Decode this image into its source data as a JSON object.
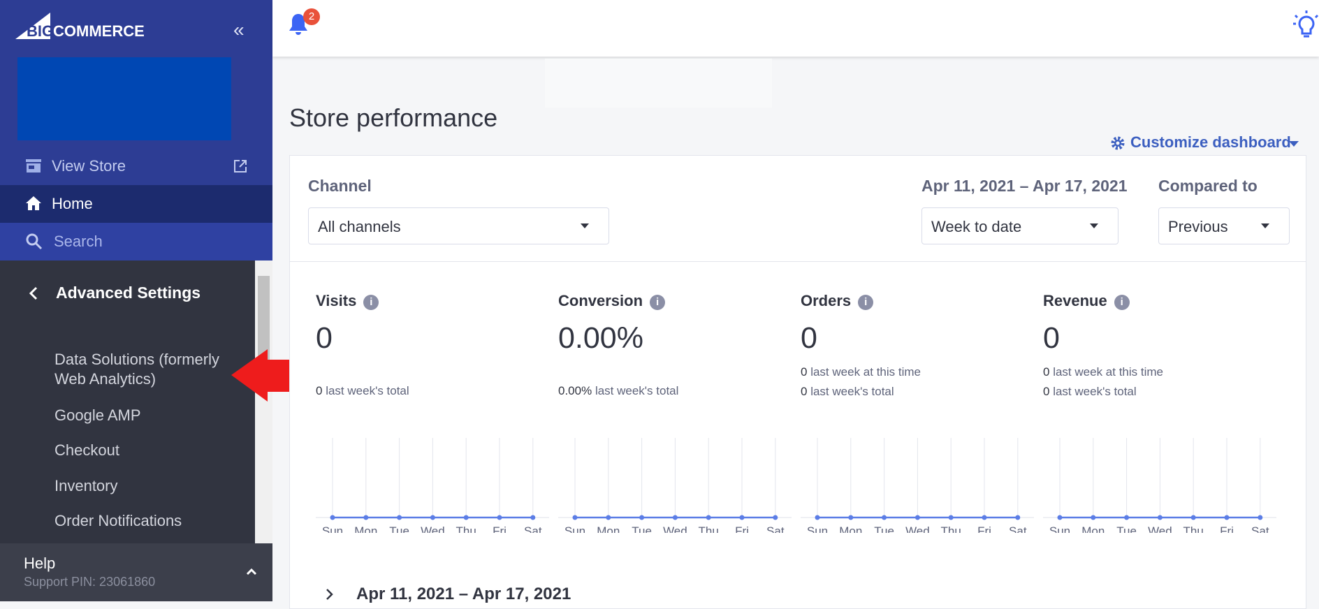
{
  "sidebar": {
    "logo_big": "BIG",
    "logo_rest": "COMMERCE",
    "view_store": "View Store",
    "home": "Home",
    "search": "Search",
    "section": "Advanced Settings",
    "menu": [
      "Data Solutions (formerly\nWeb Analytics)",
      "Google AMP",
      "Checkout",
      "Inventory",
      "Order Notifications"
    ],
    "help": "Help",
    "support_pin": "Support PIN: 23061860"
  },
  "header": {
    "notification_count": "2"
  },
  "main": {
    "title": "Store performance",
    "customize": "Customize dashboard",
    "filters": {
      "channel_label": "Channel",
      "channel": "All channels",
      "date_range": "Apr 11, 2021 – Apr 17, 2021",
      "period": "Week to date",
      "compared_label": "Compared to",
      "compared": "Previous"
    },
    "days": [
      "Sun",
      "Mon",
      "Tue",
      "Wed",
      "Thu",
      "Fri",
      "Sat"
    ],
    "metrics": [
      {
        "name": "Visits",
        "value": "0",
        "lines": [
          {
            "value": "0",
            "text": "last week's total"
          }
        ],
        "chart": [
          0,
          0,
          0,
          0,
          0,
          0,
          0
        ]
      },
      {
        "name": "Conversion",
        "value": "0.00%",
        "lines": [
          {
            "value": "0.00%",
            "text": "last week's total"
          }
        ],
        "chart": [
          0,
          0,
          0,
          0,
          0,
          0,
          0
        ]
      },
      {
        "name": "Orders",
        "value": "0",
        "lines": [
          {
            "value": "0",
            "text": "last week at this time"
          },
          {
            "value": "0",
            "text": "last week's total"
          }
        ],
        "chart": [
          0,
          0,
          0,
          0,
          0,
          0,
          0
        ]
      },
      {
        "name": "Revenue",
        "value": "0",
        "lines": [
          {
            "value": "0",
            "text": "last week at this time"
          },
          {
            "value": "0",
            "text": "last week's total"
          }
        ],
        "chart": [
          0,
          0,
          0,
          0,
          0,
          0,
          0
        ]
      }
    ],
    "period_heading": "Apr 11, 2021 – Apr 17, 2021"
  }
}
